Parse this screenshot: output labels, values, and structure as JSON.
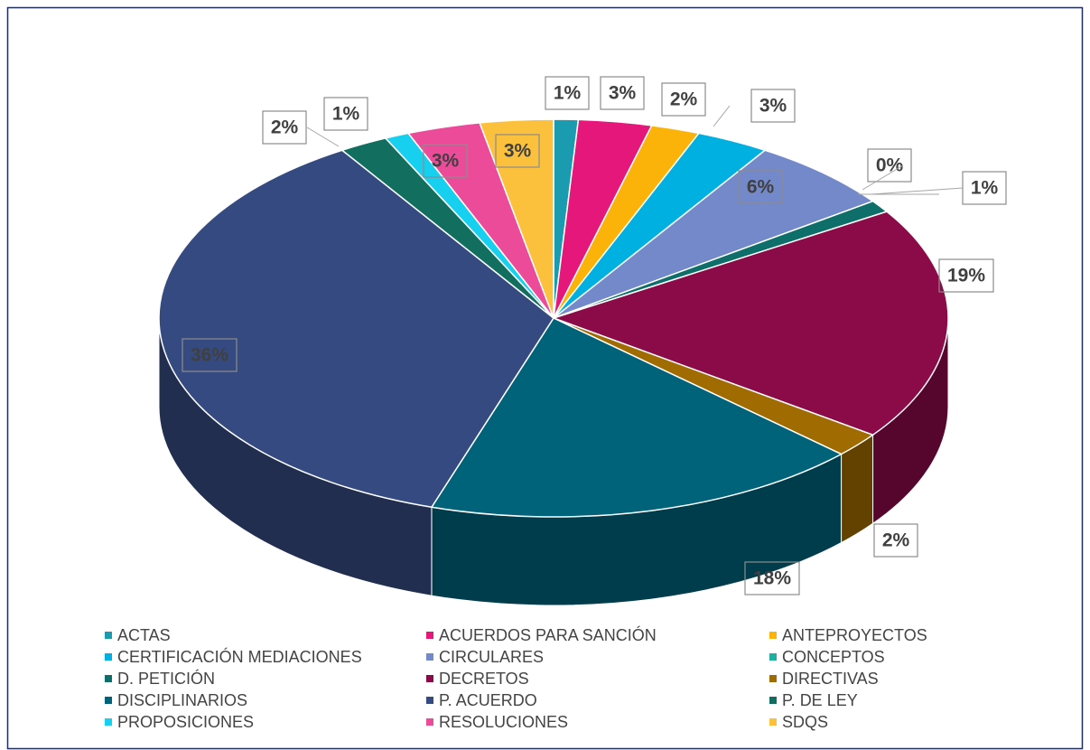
{
  "chart_data": {
    "type": "pie3d",
    "categories": [
      "ACTAS",
      "ACUERDOS PARA SANCIÓN",
      "ANTEPROYECTOS",
      "CERTIFICACIÓN MEDIACIONES",
      "CIRCULARES",
      "CONCEPTOS",
      "D. PETICIÓN",
      "DECRETOS",
      "DIRECTIVAS",
      "DISCIPLINARIOS",
      "P. ACUERDO",
      "P. DE LEY",
      "PROPOSICIONES",
      "RESOLUCIONES",
      "SDQS"
    ],
    "values": [
      1,
      3,
      2,
      3,
      6,
      0,
      1,
      19,
      2,
      18,
      36,
      2,
      1,
      3,
      3
    ],
    "value_labels": [
      "1%",
      "3%",
      "2%",
      "3%",
      "6%",
      "0%",
      "1%",
      "19%",
      "2%",
      "18%",
      "36%",
      "2%",
      "1%",
      "3%",
      "3%"
    ],
    "colors": [
      "#1a9bb0",
      "#e6177a",
      "#fbb30a",
      "#00b0e0",
      "#7389c9",
      "#20b0a0",
      "#0d6e6a",
      "#8b0a48",
      "#a06b00",
      "#00637a",
      "#354a80",
      "#126e5e",
      "#17d0f0",
      "#ec4b9a",
      "#fcc13c"
    ],
    "legend": "bottom"
  }
}
